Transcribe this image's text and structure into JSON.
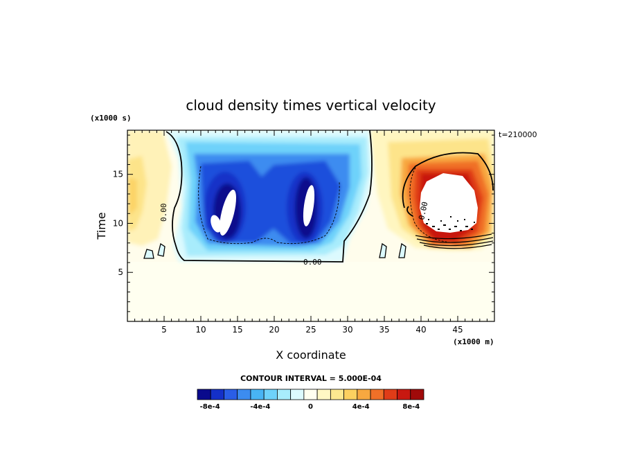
{
  "chart_data": {
    "type": "heatmap",
    "title": "cloud density times vertical velocity",
    "xlabel": "X coordinate",
    "ylabel": "Time",
    "x_unit_label": "(x1000 m)",
    "y_unit_label": "(x1000 s)",
    "time_stamp": "t=210000",
    "xlim": [
      0,
      50
    ],
    "ylim": [
      0,
      19.5
    ],
    "x_ticks": [
      5,
      10,
      15,
      20,
      25,
      30,
      35,
      40,
      45
    ],
    "x_tick_labels": [
      "5",
      "10",
      "15",
      "20",
      "25",
      "30",
      "35",
      "40",
      "45"
    ],
    "y_ticks": [
      5,
      10,
      15
    ],
    "y_tick_labels": [
      "5",
      "10",
      "15"
    ],
    "contour_label": "0.00",
    "contour_interval_text": "CONTOUR INTERVAL = 5.000E-04",
    "colorbar": {
      "colors": [
        "#0a0a8c",
        "#1430c8",
        "#2a5ee6",
        "#3c8cf0",
        "#48b4f4",
        "#6ed2fa",
        "#a8ecfc",
        "#dcfafe",
        "#fffff0",
        "#fff8c4",
        "#fce890",
        "#fcd060",
        "#f8a840",
        "#f07028",
        "#e03c18",
        "#c81810",
        "#a00a0a"
      ],
      "tick_labels": [
        "-8e-4",
        "-4e-4",
        "0",
        "4e-4",
        "8e-4"
      ],
      "tick_values": [
        -0.0008,
        -0.0004,
        0,
        0.0004,
        0.0008
      ],
      "min": -0.0009,
      "max": 0.0009
    },
    "features": [
      {
        "kind": "negative-region",
        "x_range": [
          5.5,
          33
        ],
        "t_range": [
          6.5,
          19.5
        ],
        "level": -0.0006
      },
      {
        "kind": "negative-core",
        "x_center": 13.5,
        "t_center": 11.5,
        "level": -0.0009
      },
      {
        "kind": "negative-core",
        "x_center": 24,
        "t_center": 11.5,
        "level": -0.0009
      },
      {
        "kind": "positive-region",
        "x_range": [
          36,
          50
        ],
        "t_range": [
          7.5,
          19.5
        ],
        "level": 0.0009
      },
      {
        "kind": "positive-region",
        "x_range": [
          0,
          4
        ],
        "t_range": [
          8,
          19.5
        ],
        "level": 0.0002
      }
    ]
  }
}
